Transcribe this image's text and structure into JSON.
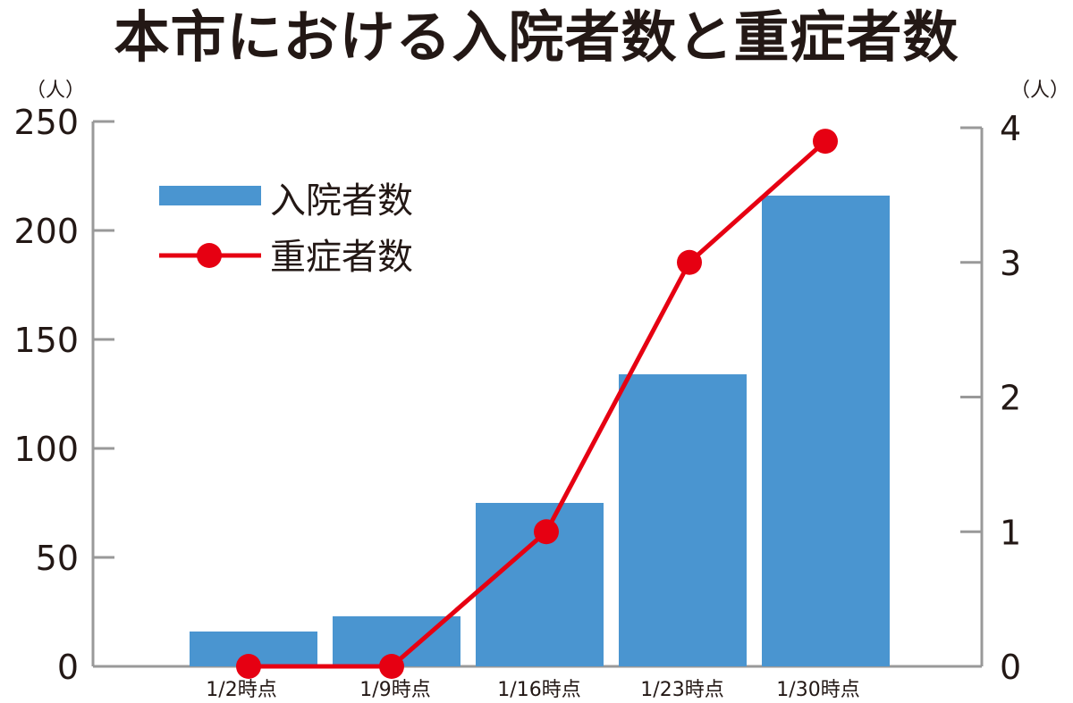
{
  "chart_data": {
    "type": "bar+line",
    "title": "本市における入院者数と重症者数",
    "categories": [
      "1/2時点",
      "1/9時点",
      "1/16時点",
      "1/23時点",
      "1/30時点"
    ],
    "series": [
      {
        "name": "入院者数",
        "type": "bar",
        "axis": "left",
        "color": "#4a95d0",
        "values": [
          16,
          23,
          75,
          134,
          216
        ]
      },
      {
        "name": "重症者数",
        "type": "line",
        "axis": "right",
        "color": "#e60012",
        "values": [
          0,
          0,
          1,
          3,
          3.9
        ]
      }
    ],
    "y_left": {
      "unit": "（人）",
      "ylim": [
        0,
        250
      ],
      "ticks": [
        0,
        50,
        100,
        150,
        200,
        250
      ]
    },
    "y_right": {
      "unit": "（人）",
      "ylim": [
        0,
        4
      ],
      "ticks": [
        0,
        1,
        2,
        3,
        4
      ]
    },
    "legend": {
      "position": "top-left",
      "entries": [
        "入院者数",
        "重症者数"
      ]
    },
    "grid": false
  }
}
